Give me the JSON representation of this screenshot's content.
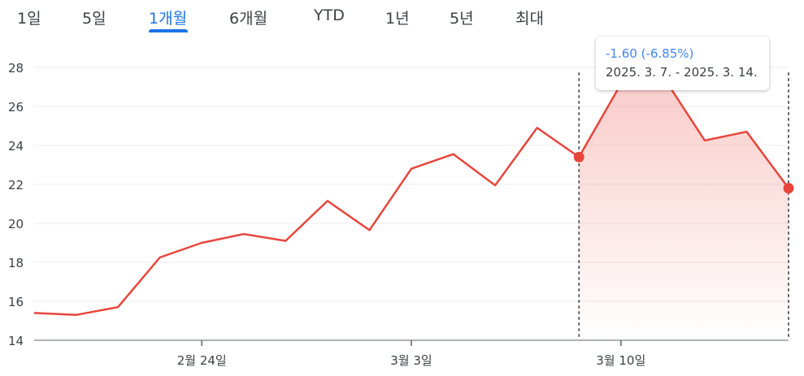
{
  "tabs": [
    {
      "label": "1일"
    },
    {
      "label": "5일"
    },
    {
      "label": "1개월",
      "active": true
    },
    {
      "label": "6개월"
    },
    {
      "label": "YTD"
    },
    {
      "label": "1년"
    },
    {
      "label": "5년"
    },
    {
      "label": "최대"
    }
  ],
  "colors": {
    "accent": "#1a73e8",
    "line": "#e8453c",
    "tooltip_change": "#4285f4"
  },
  "tooltip": {
    "change": "-1.60 (-6.85%)",
    "range": "2025. 3. 7. - 2025. 3. 14."
  },
  "chart_data": {
    "type": "line",
    "y_ticks": [
      "28",
      "26",
      "24",
      "22",
      "20",
      "18",
      "16",
      "14"
    ],
    "ylim": [
      14,
      28
    ],
    "x_ticks": [
      "2월 24일",
      "3월 3일",
      "3월 10일"
    ],
    "grid": true,
    "series": [
      {
        "values": [
          15.4,
          15.3,
          15.7,
          18.25,
          19.0,
          19.45,
          19.1,
          21.15,
          19.65,
          22.8,
          23.55,
          21.95,
          24.9,
          23.4,
          27.15,
          27.55,
          24.25,
          24.7,
          21.8
        ]
      }
    ],
    "selection": {
      "start_index": 13,
      "end_index": 18
    }
  }
}
